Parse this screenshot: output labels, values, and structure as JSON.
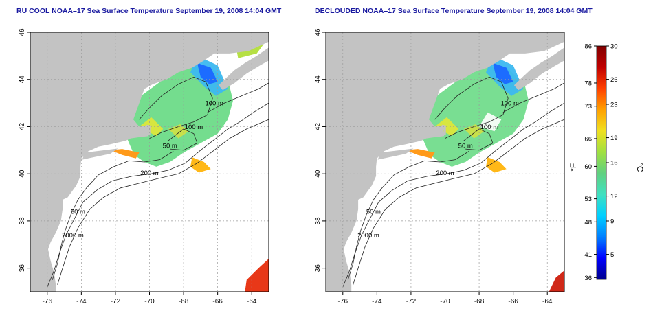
{
  "panels": [
    {
      "title": "RU COOL NOAA–17 Sea Surface Temperature September 19, 2008 14:04 GMT",
      "variant": "cool"
    },
    {
      "title": "DECLOUDED NOAA–17 Sea Surface Temperature September 19, 2008 14:04 GMT",
      "variant": "declouded"
    }
  ],
  "map": {
    "lon_range": [
      -77,
      -63
    ],
    "lat_range": [
      35,
      46
    ],
    "lon_ticks": [
      -76,
      -74,
      -72,
      -70,
      -68,
      -66,
      -64
    ],
    "lat_ticks": [
      36,
      38,
      40,
      42,
      44,
      46
    ],
    "grid": true,
    "colors": {
      "land": "#c3c3c3",
      "ocean": "#ffffff",
      "isobath": "#222222"
    }
  },
  "isobath_labels": [
    {
      "text": "100 m",
      "lon": -66.2,
      "lat": 42.9
    },
    {
      "text": "100 m",
      "lon": -67.4,
      "lat": 41.9
    },
    {
      "text": "50 m",
      "lon": -68.8,
      "lat": 41.1
    },
    {
      "text": "200 m",
      "lon": -70.0,
      "lat": 39.95
    },
    {
      "text": "50 m",
      "lon": -74.2,
      "lat": 38.3
    },
    {
      "text": "2000 m",
      "lon": -74.5,
      "lat": 37.3
    }
  ],
  "colorbar": {
    "left_unit": "°F",
    "right_unit": "°C",
    "celsius_range": [
      2,
      30
    ],
    "fahrenheit_ticks": [
      "86",
      "78",
      "73",
      "66",
      "60",
      "53",
      "48",
      "41",
      "36"
    ],
    "celsius_ticks": [
      "30",
      "26",
      "23",
      "19",
      "16",
      "12",
      "9",
      "5"
    ],
    "fahrenheit_values": [
      86,
      78,
      73,
      66,
      60,
      53,
      48,
      41,
      36
    ],
    "celsius_values": [
      30,
      26,
      23,
      19,
      16,
      12,
      9,
      5
    ],
    "gradient": [
      "#00008b",
      "#0000ff",
      "#0080ff",
      "#00d0ff",
      "#40e0c0",
      "#60d080",
      "#a0e040",
      "#f0e020",
      "#ffa000",
      "#ff4000",
      "#c00000",
      "#800000"
    ]
  }
}
